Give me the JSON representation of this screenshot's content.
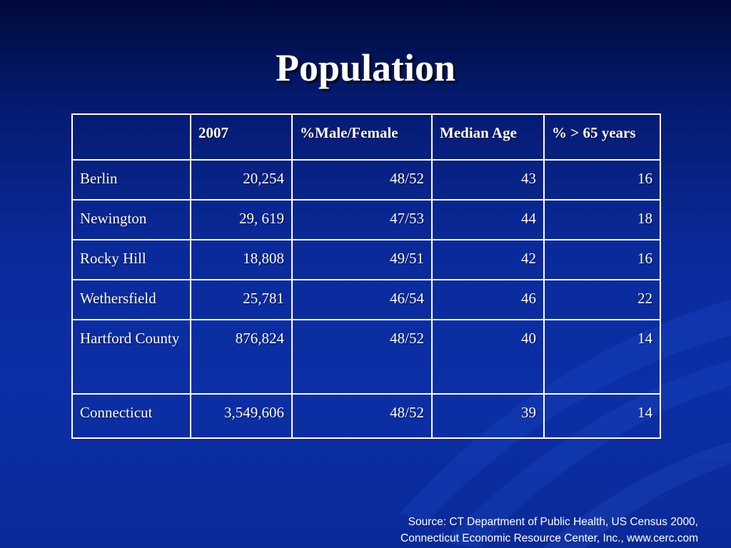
{
  "slide": {
    "title": "Population"
  },
  "table": {
    "headers": [
      "",
      "2007",
      "%Male/Female",
      "Median Age",
      "% > 65 years"
    ],
    "rows": [
      {
        "name": "Berlin",
        "pop2007": "20,254",
        "male_female": "48/52",
        "median_age": "43",
        "over65": "16"
      },
      {
        "name": "Newington",
        "pop2007": "29, 619",
        "male_female": "47/53",
        "median_age": "44",
        "over65": "18"
      },
      {
        "name": "Rocky Hill",
        "pop2007": "18,808",
        "male_female": "49/51",
        "median_age": "42",
        "over65": "16"
      },
      {
        "name": "Wethersfield",
        "pop2007": "25,781",
        "male_female": "46/54",
        "median_age": "46",
        "over65": "22"
      },
      {
        "name": "Hartford County",
        "pop2007": "876,824",
        "male_female": "48/52",
        "median_age": "40",
        "over65": "14"
      },
      {
        "name": "Connecticut",
        "pop2007": "3,549,606",
        "male_female": "48/52",
        "median_age": "39",
        "over65": "14"
      }
    ]
  },
  "source": {
    "line1": "Source: CT Department of Public Health, US Census 2000,",
    "line2": "Connecticut Economic Resource Center, Inc., www.cerc.com"
  },
  "colors": {
    "background_top": "#000a3a",
    "background_main": "#0b2fa6",
    "text": "#ffffff",
    "table_border": "#ffffff"
  }
}
